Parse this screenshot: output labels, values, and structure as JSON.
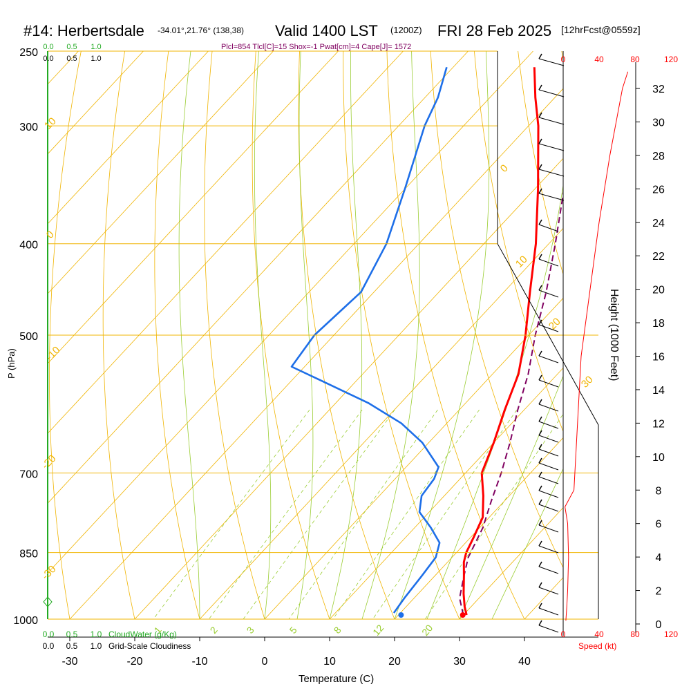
{
  "header": {
    "station": "#14: Herbertsdale",
    "coords": "-34.01°,21.76° (138,38)",
    "valid": "Valid 1400 LST",
    "zulu": "(1200Z)",
    "date": "FRI 28 Feb 2025",
    "forecast": "[12hrFcst@0559z]",
    "indices": "Plcl=854 Tlcl[C]=15 Shox=-1 Pwat[cm]=4 Cape[J]= 1572"
  },
  "colors": {
    "isobar": "#f0b400",
    "isotherm": "#f0b400",
    "dry_adiabat": "#f0b400",
    "moist_adiabat": "#9acd32",
    "mixing_ratio": "#9acd32",
    "temperature": "#ff0000",
    "dewpoint": "#1e6fe8",
    "parcel": "#800060",
    "cloud_axis": "#22aa22",
    "height_text": "#000000",
    "speed_text": "#ff0000"
  },
  "chart_data": {
    "type": "skew-t",
    "xlabel": "Temperature (C)",
    "ylabel": "P (hPa)",
    "x_ticks": [
      "-30",
      "-20",
      "-10",
      "0",
      "10",
      "20",
      "30",
      "40"
    ],
    "p_ticks": [
      "250",
      "300",
      "400",
      "500",
      "700",
      "850",
      "1000"
    ],
    "height_label": "Height (1000 Feet)",
    "height_ticks": [
      "0",
      "2",
      "4",
      "6",
      "8",
      "10",
      "12",
      "14",
      "16",
      "18",
      "20",
      "22",
      "24",
      "26",
      "28",
      "30",
      "32"
    ],
    "speed_label": "Speed (kt)",
    "speed_ticks": [
      "0",
      "40",
      "80",
      "120"
    ],
    "cloud_water_label": "CloudWater (g/Kg)",
    "cloudiness_label": "Grid-Scale Cloudiness",
    "cloud_ticks": [
      "0.0",
      "0.5",
      "1.0"
    ],
    "mixing_ratio_labels": [
      "1",
      "2",
      "3",
      "5",
      "8",
      "12",
      "20"
    ],
    "isotherm_labels": [
      "10",
      "0",
      "-10",
      "-20",
      "-30",
      "0",
      "10",
      "20",
      "30"
    ],
    "temperature_profile": [
      {
        "p": 990,
        "t": 30.5
      },
      {
        "p": 970,
        "t": 29.0
      },
      {
        "p": 940,
        "t": 27.0
      },
      {
        "p": 900,
        "t": 24.5
      },
      {
        "p": 870,
        "t": 22.5
      },
      {
        "p": 850,
        "t": 21.5
      },
      {
        "p": 820,
        "t": 20.5
      },
      {
        "p": 780,
        "t": 19.0
      },
      {
        "p": 740,
        "t": 16.0
      },
      {
        "p": 700,
        "t": 12.5
      },
      {
        "p": 650,
        "t": 10.0
      },
      {
        "p": 600,
        "t": 7.0
      },
      {
        "p": 550,
        "t": 4.0
      },
      {
        "p": 500,
        "t": -0.5
      },
      {
        "p": 450,
        "t": -6.0
      },
      {
        "p": 400,
        "t": -12.0
      },
      {
        "p": 350,
        "t": -19.5
      },
      {
        "p": 300,
        "t": -28.5
      },
      {
        "p": 280,
        "t": -33.0
      },
      {
        "p": 260,
        "t": -37.5
      }
    ],
    "dewpoint_profile": [
      {
        "p": 985,
        "t": 19.0
      },
      {
        "p": 950,
        "t": 18.5
      },
      {
        "p": 900,
        "t": 18.0
      },
      {
        "p": 860,
        "t": 17.5
      },
      {
        "p": 830,
        "t": 16.0
      },
      {
        "p": 800,
        "t": 12.5
      },
      {
        "p": 770,
        "t": 8.5
      },
      {
        "p": 740,
        "t": 6.5
      },
      {
        "p": 710,
        "t": 6.0
      },
      {
        "p": 690,
        "t": 5.0
      },
      {
        "p": 650,
        "t": -1.0
      },
      {
        "p": 620,
        "t": -7.0
      },
      {
        "p": 590,
        "t": -15.0
      },
      {
        "p": 560,
        "t": -25.0
      },
      {
        "p": 540,
        "t": -32.0
      },
      {
        "p": 500,
        "t": -33.0
      },
      {
        "p": 450,
        "t": -32.0
      },
      {
        "p": 400,
        "t": -35.0
      },
      {
        "p": 350,
        "t": -40.0
      },
      {
        "p": 300,
        "t": -46.0
      },
      {
        "p": 280,
        "t": -48.0
      },
      {
        "p": 260,
        "t": -51.0
      }
    ],
    "parcel_profile": [
      {
        "p": 990,
        "t": 30.0
      },
      {
        "p": 950,
        "t": 27.0
      },
      {
        "p": 900,
        "t": 24.5
      },
      {
        "p": 860,
        "t": 22.5
      },
      {
        "p": 800,
        "t": 20.5
      },
      {
        "p": 750,
        "t": 18.0
      },
      {
        "p": 700,
        "t": 15.5
      },
      {
        "p": 650,
        "t": 12.5
      },
      {
        "p": 600,
        "t": 9.0
      },
      {
        "p": 550,
        "t": 5.5
      },
      {
        "p": 500,
        "t": 1.0
      },
      {
        "p": 450,
        "t": -3.5
      },
      {
        "p": 400,
        "t": -9.0
      },
      {
        "p": 350,
        "t": -15.5
      },
      {
        "p": 300,
        "t": -23.5
      },
      {
        "p": 265,
        "t": -30.0
      }
    ],
    "surface_temperature": 30.5,
    "surface_dewpoint": 21.0,
    "wind_speed_profile": [
      {
        "h": 0.2,
        "v": 3
      },
      {
        "h": 1.0,
        "v": 4
      },
      {
        "h": 2.0,
        "v": 5
      },
      {
        "h": 4.0,
        "v": 6
      },
      {
        "h": 6.0,
        "v": 5
      },
      {
        "h": 7.0,
        "v": 2
      },
      {
        "h": 8.0,
        "v": 12
      },
      {
        "h": 10.0,
        "v": 14
      },
      {
        "h": 12.0,
        "v": 16
      },
      {
        "h": 14.0,
        "v": 18
      },
      {
        "h": 16.0,
        "v": 20
      },
      {
        "h": 20.0,
        "v": 30
      },
      {
        "h": 24.0,
        "v": 40
      },
      {
        "h": 28.0,
        "v": 52
      },
      {
        "h": 32.0,
        "v": 66
      },
      {
        "h": 33.0,
        "v": 72
      }
    ],
    "grid": true
  }
}
